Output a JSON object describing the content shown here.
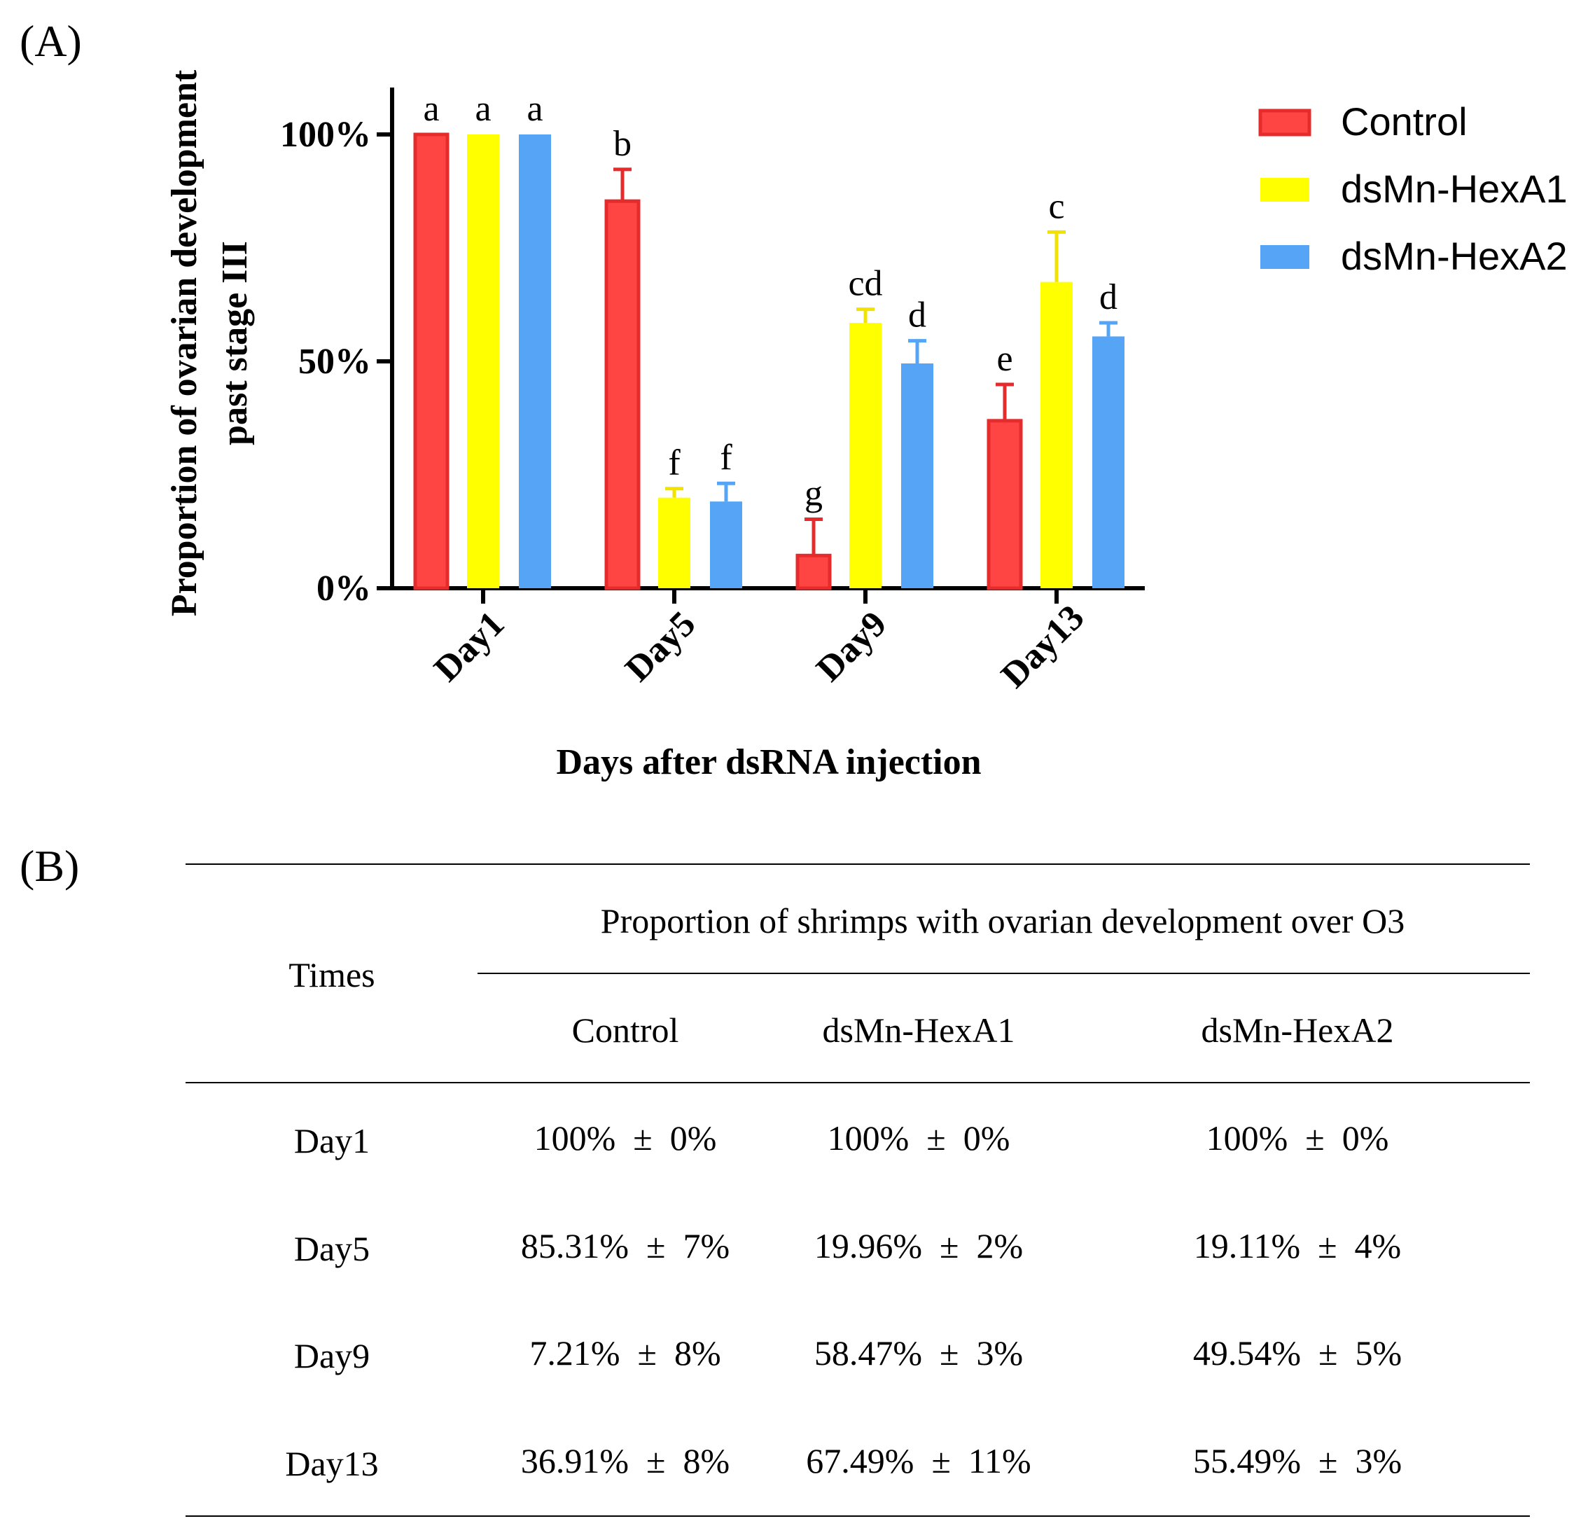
{
  "panels": {
    "a": "(A)",
    "b": "(B)"
  },
  "colors": {
    "control": "#FF4444",
    "control_edge": "#E52B2B",
    "hexa1": "#FFFF00",
    "hexa1_edge": "#F2E200",
    "hexa2": "#55A4F5"
  },
  "chart_data": {
    "type": "bar",
    "title": "",
    "xlabel": "Days after dsRNA injection",
    "ylabel": [
      "Proportion of ovarian development",
      "past stage III"
    ],
    "ylim": [
      0,
      100
    ],
    "yticks": [
      0,
      50,
      100
    ],
    "ytick_labels": [
      "0%",
      "50%",
      "100%"
    ],
    "categories": [
      "Day1",
      "Day5",
      "Day9",
      "Day13"
    ],
    "legend_position": "top-right",
    "series": [
      {
        "name": "Control",
        "key": "control",
        "values": [
          100,
          85.31,
          7.21,
          36.91
        ],
        "errors": [
          0,
          7,
          8,
          8
        ],
        "letters": [
          "a",
          "b",
          "g",
          "e"
        ]
      },
      {
        "name": "dsMn-HexA1",
        "key": "hexa1",
        "values": [
          100,
          19.96,
          58.47,
          67.49
        ],
        "errors": [
          0,
          2,
          3,
          11
        ],
        "letters": [
          "a",
          "f",
          "cd",
          "c"
        ]
      },
      {
        "name": "dsMn-HexA2",
        "key": "hexa2",
        "values": [
          100,
          19.11,
          49.54,
          55.49
        ],
        "errors": [
          0,
          4,
          5,
          3
        ],
        "letters": [
          "a",
          "f",
          "d",
          "d"
        ]
      }
    ]
  },
  "table": {
    "row_header": "Times",
    "group_header": "Proportion of shrimps with ovarian development over O3",
    "columns": [
      "Control",
      "dsMn-HexA1",
      "dsMn-HexA2"
    ],
    "rows": [
      {
        "label": "Day1",
        "cells": [
          "100%  ±  0%",
          "100%  ±  0%",
          "100%  ±  0%"
        ]
      },
      {
        "label": "Day5",
        "cells": [
          "85.31%  ±  7%",
          "19.96%  ±  2%",
          "19.11%  ±  4%"
        ]
      },
      {
        "label": "Day9",
        "cells": [
          "7.21%  ±  8%",
          "58.47%  ±  3%",
          "49.54%  ±  5%"
        ]
      },
      {
        "label": "Day13",
        "cells": [
          "36.91%  ±  8%",
          "67.49%  ±  11%",
          "55.49%  ±  3%"
        ]
      }
    ]
  }
}
